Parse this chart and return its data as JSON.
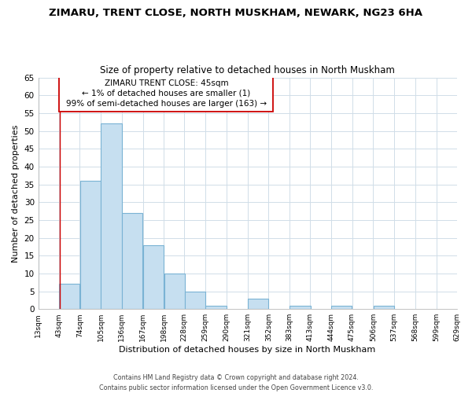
{
  "title1": "ZIMARU, TRENT CLOSE, NORTH MUSKHAM, NEWARK, NG23 6HA",
  "title2": "Size of property relative to detached houses in North Muskham",
  "xlabel": "Distribution of detached houses by size in North Muskham",
  "ylabel": "Number of detached properties",
  "bar_left_edges": [
    43,
    74,
    105,
    136,
    167,
    198,
    228,
    259,
    290,
    321,
    352,
    383,
    413,
    444,
    475,
    506,
    537,
    568,
    599
  ],
  "bar_heights": [
    7,
    36,
    52,
    27,
    18,
    10,
    5,
    1,
    0,
    3,
    0,
    1,
    0,
    1,
    0,
    1,
    0,
    0,
    0
  ],
  "bin_width": 31,
  "bar_color": "#c6dff0",
  "bar_edgecolor": "#7ab3d4",
  "xlim_left": 13,
  "xlim_right": 629,
  "ylim_top": 65,
  "yticks": [
    0,
    5,
    10,
    15,
    20,
    25,
    30,
    35,
    40,
    45,
    50,
    55,
    60,
    65
  ],
  "xtick_labels": [
    "13sqm",
    "43sqm",
    "74sqm",
    "105sqm",
    "136sqm",
    "167sqm",
    "198sqm",
    "228sqm",
    "259sqm",
    "290sqm",
    "321sqm",
    "352sqm",
    "383sqm",
    "413sqm",
    "444sqm",
    "475sqm",
    "506sqm",
    "537sqm",
    "568sqm",
    "599sqm",
    "629sqm"
  ],
  "xtick_positions": [
    13,
    43,
    74,
    105,
    136,
    167,
    198,
    228,
    259,
    290,
    321,
    352,
    383,
    413,
    444,
    475,
    506,
    537,
    568,
    599,
    629
  ],
  "property_x": 45,
  "vline_color": "#cc0000",
  "annotation_title": "ZIMARU TRENT CLOSE: 45sqm",
  "annotation_line1": "← 1% of detached houses are smaller (1)",
  "annotation_line2": "99% of semi-detached houses are larger (163) →",
  "footer1": "Contains HM Land Registry data © Crown copyright and database right 2024.",
  "footer2": "Contains public sector information licensed under the Open Government Licence v3.0.",
  "background_color": "#ffffff",
  "grid_color": "#d0dde8"
}
